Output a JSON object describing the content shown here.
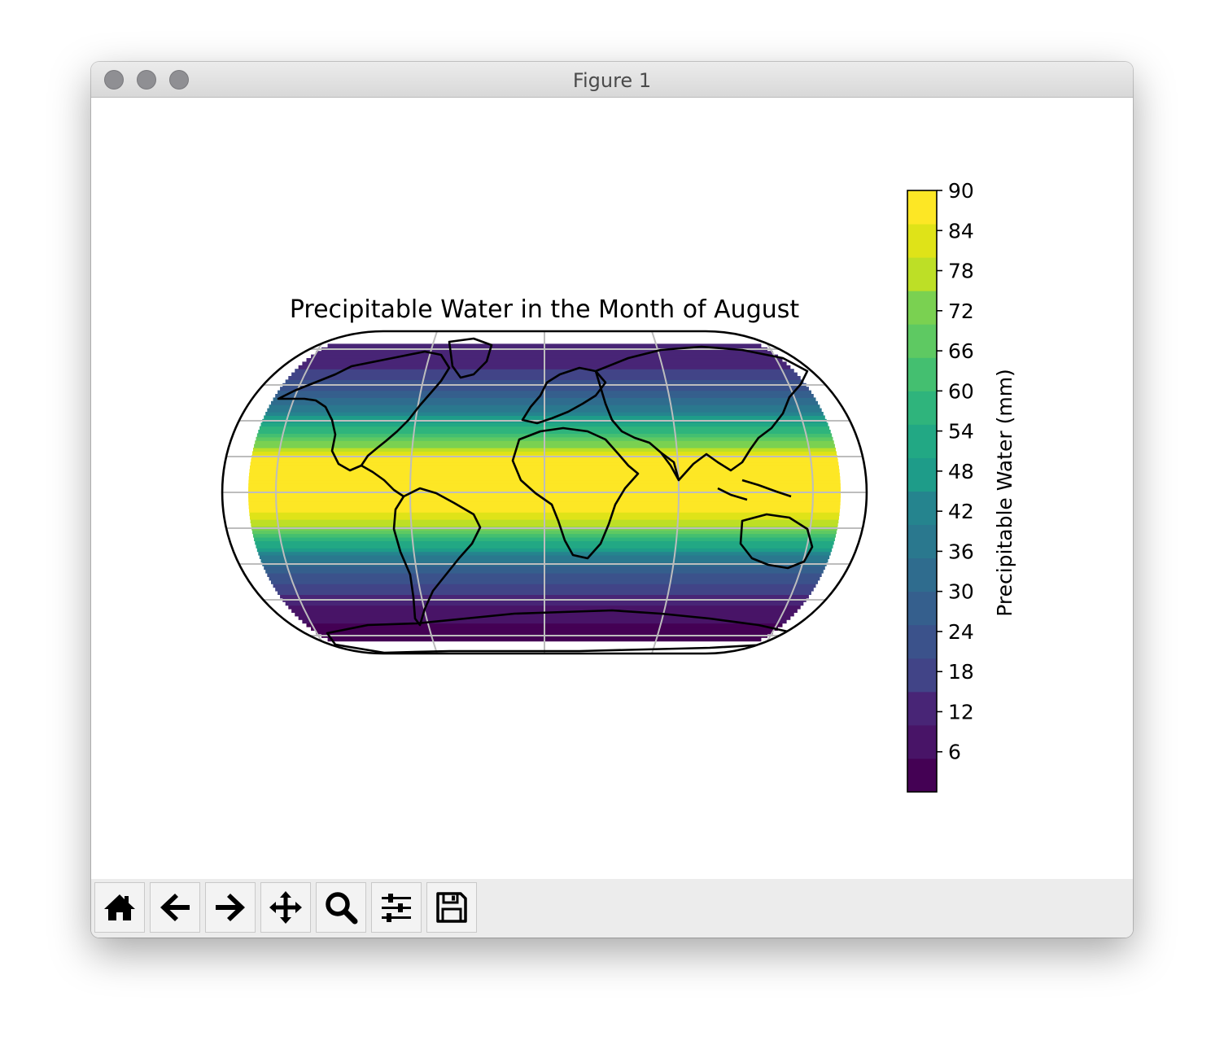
{
  "window": {
    "title": "Figure 1"
  },
  "toolbar": {
    "buttons": [
      {
        "name": "home-button",
        "icon": "home-icon"
      },
      {
        "name": "back-button",
        "icon": "arrow-left-icon"
      },
      {
        "name": "forward-button",
        "icon": "arrow-right-icon"
      },
      {
        "name": "pan-button",
        "icon": "move-icon"
      },
      {
        "name": "zoom-button",
        "icon": "magnifier-icon"
      },
      {
        "name": "configure-subplots-button",
        "icon": "sliders-icon"
      },
      {
        "name": "save-button",
        "icon": "floppy-disk-icon"
      }
    ]
  },
  "chart_data": {
    "type": "heatmap",
    "title": "Precipitable Water in the Month of August",
    "projection": "Eckert",
    "colormap": "viridis",
    "colorbar": {
      "label": "Precipitable Water (mm)",
      "ticks": [
        "6",
        "12",
        "18",
        "24",
        "30",
        "36",
        "42",
        "48",
        "54",
        "60",
        "66",
        "72",
        "78",
        "84",
        "90"
      ],
      "range": [
        0,
        90
      ],
      "levels": 18
    },
    "latitude_profile": {
      "lat": [
        -80,
        -70,
        -60,
        -50,
        -40,
        -30,
        -20,
        -10,
        0,
        10,
        20,
        30,
        40,
        50,
        60,
        70,
        80
      ],
      "value": [
        2,
        6,
        12,
        20,
        32,
        50,
        72,
        88,
        90,
        90,
        86,
        66,
        48,
        34,
        22,
        14,
        10
      ]
    },
    "gridlines": true,
    "coastlines": true
  }
}
